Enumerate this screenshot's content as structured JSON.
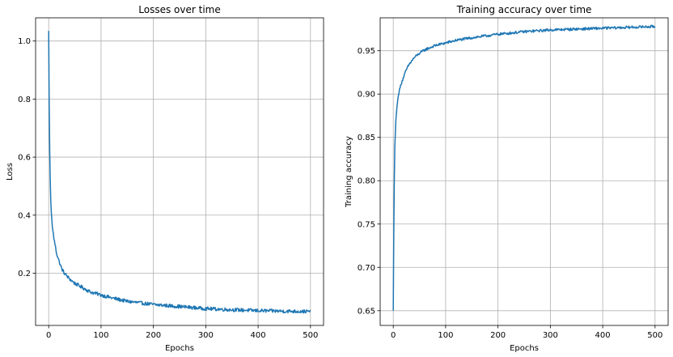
{
  "chart_data": [
    {
      "type": "line",
      "title": "Losses over time",
      "xlabel": "Epochs",
      "ylabel": "Loss",
      "xlim": [
        -25,
        525
      ],
      "ylim": [
        0.02,
        1.08
      ],
      "xticks": [
        0,
        100,
        200,
        300,
        400,
        500
      ],
      "yticks": [
        0.2,
        0.4,
        0.6,
        0.8,
        1.0
      ],
      "ytick_labels": [
        "0.2",
        "0.4",
        "0.6",
        "0.8",
        "1.0"
      ],
      "grid": true,
      "color": "#1f77b4",
      "series": [
        {
          "x": [
            0,
            1,
            2,
            3,
            4,
            5,
            7,
            10,
            12,
            15,
            20,
            25,
            30,
            40,
            50,
            60,
            70,
            80,
            100,
            120,
            150,
            200,
            250,
            300,
            350,
            400,
            450,
            500
          ],
          "values": [
            1.035,
            0.78,
            0.62,
            0.52,
            0.45,
            0.41,
            0.36,
            0.32,
            0.3,
            0.27,
            0.24,
            0.215,
            0.2,
            0.18,
            0.165,
            0.155,
            0.145,
            0.135,
            0.125,
            0.115,
            0.103,
            0.092,
            0.085,
            0.078,
            0.074,
            0.071,
            0.069,
            0.068
          ],
          "noise": 0.006
        }
      ]
    },
    {
      "type": "line",
      "title": "Training accuracy over time",
      "xlabel": "Epochs",
      "ylabel": "Training accuracy",
      "xlim": [
        -25,
        525
      ],
      "ylim": [
        0.633,
        0.988
      ],
      "xticks": [
        0,
        100,
        200,
        300,
        400,
        500
      ],
      "yticks": [
        0.65,
        0.7,
        0.75,
        0.8,
        0.85,
        0.9,
        0.95
      ],
      "ytick_labels": [
        "0.65",
        "0.70",
        "0.75",
        "0.80",
        "0.85",
        "0.90",
        "0.95"
      ],
      "grid": true,
      "color": "#1f77b4",
      "series": [
        {
          "x": [
            0,
            1,
            2,
            3,
            5,
            7,
            10,
            15,
            20,
            25,
            30,
            40,
            50,
            60,
            80,
            100,
            120,
            150,
            200,
            250,
            300,
            350,
            400,
            450,
            500
          ],
          "values": [
            0.65,
            0.74,
            0.8,
            0.84,
            0.87,
            0.885,
            0.9,
            0.912,
            0.92,
            0.928,
            0.934,
            0.942,
            0.947,
            0.951,
            0.956,
            0.959,
            0.962,
            0.965,
            0.969,
            0.972,
            0.974,
            0.975,
            0.976,
            0.977,
            0.978
          ],
          "noise": 0.0015
        }
      ]
    }
  ]
}
